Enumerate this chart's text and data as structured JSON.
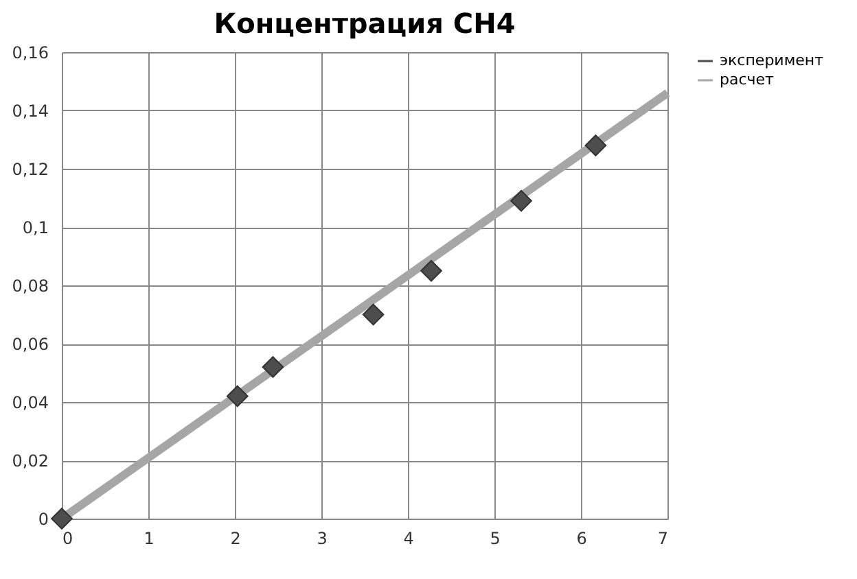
{
  "chart_data": {
    "type": "scatter",
    "title": "Концентрация CH4",
    "series": [
      {
        "name": "эксперимент",
        "color": "#4d4d4d",
        "marker": "diamond",
        "x": [
          0,
          2.03,
          2.44,
          3.6,
          4.27,
          5.31,
          6.17
        ],
        "values": [
          0,
          0.042,
          0.052,
          0.07,
          0.085,
          0.109,
          0.128
        ]
      },
      {
        "name": "расчет",
        "type": "line",
        "color": "#a6a6a6",
        "marker": "none",
        "x": [
          0,
          7
        ],
        "values": [
          0,
          0.146
        ]
      }
    ],
    "xlim": [
      0,
      7
    ],
    "xticks": [
      0,
      1,
      2,
      3,
      4,
      5,
      6,
      7
    ],
    "ylim": [
      0,
      0.16
    ],
    "yticks": [
      {
        "value": 0,
        "label": "0"
      },
      {
        "value": 0.02,
        "label": "0,02"
      },
      {
        "value": 0.04,
        "label": "0,04"
      },
      {
        "value": 0.06,
        "label": "0,06"
      },
      {
        "value": 0.08,
        "label": "0,08"
      },
      {
        "value": 0.1,
        "label": "0,1"
      },
      {
        "value": 0.12,
        "label": "0,12"
      },
      {
        "value": 0.14,
        "label": "0,14"
      },
      {
        "value": 0.16,
        "label": "0,16"
      }
    ],
    "grid": true,
    "legend": "right"
  }
}
